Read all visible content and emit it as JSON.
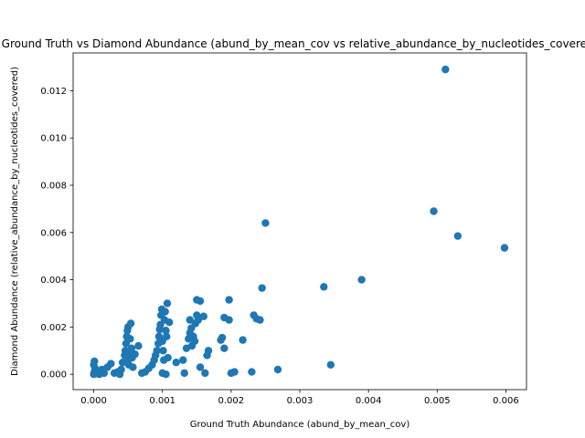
{
  "chart_data": {
    "type": "scatter",
    "title": "Ground Truth vs Diamond Abundance (abund_by_mean_cov vs relative_abundance_by_nucleotides_covered)",
    "xlabel": "Ground Truth Abundance (abund_by_mean_cov)",
    "ylabel": "Diamond Abundance (relative_abundance_by_nucleotides_covered)",
    "xlim": [
      -0.0003,
      0.0063
    ],
    "ylim": [
      -0.00065,
      0.0136
    ],
    "xticks": [
      0.0,
      0.001,
      0.002,
      0.003,
      0.004,
      0.005,
      0.006
    ],
    "xtick_labels": [
      "0.000",
      "0.001",
      "0.002",
      "0.003",
      "0.004",
      "0.005",
      "0.006"
    ],
    "yticks": [
      0.0,
      0.002,
      0.004,
      0.006,
      0.008,
      0.01,
      0.012
    ],
    "ytick_labels": [
      "0.000",
      "0.002",
      "0.004",
      "0.006",
      "0.008",
      "0.010",
      "0.012"
    ],
    "grid": false,
    "marker_color": "#1f77b4",
    "points": [
      [
        0.0,
        0.0
      ],
      [
        1e-05,
        0.0001
      ],
      [
        2e-05,
        0.00025
      ],
      [
        0.0,
        0.0004
      ],
      [
        1e-05,
        0.00055
      ],
      [
        3e-05,
        5e-05
      ],
      [
        5e-05,
        0.00015
      ],
      [
        8e-05,
        0.0
      ],
      [
        0.0001,
        8e-05
      ],
      [
        0.00012,
        0.0002
      ],
      [
        0.00015,
        5e-05
      ],
      [
        0.0002,
        0.0003
      ],
      [
        0.00025,
        0.00045
      ],
      [
        0.0003,
        5e-05
      ],
      [
        0.00035,
        0.0001
      ],
      [
        0.00038,
        0.0
      ],
      [
        0.0004,
        0.0002
      ],
      [
        0.00042,
        0.0005
      ],
      [
        0.00045,
        0.0008
      ],
      [
        0.00046,
        0.001
      ],
      [
        0.00047,
        0.0013
      ],
      [
        0.00048,
        0.0016
      ],
      [
        0.00049,
        0.00185
      ],
      [
        0.0005,
        0.002
      ],
      [
        0.0005,
        0.0006
      ],
      [
        0.00051,
        0.0004
      ],
      [
        0.00052,
        0.0009
      ],
      [
        0.00053,
        0.0015
      ],
      [
        0.00054,
        0.00215
      ],
      [
        0.00055,
        0.0011
      ],
      [
        0.00056,
        0.0007
      ],
      [
        0.00057,
        0.0003
      ],
      [
        0.0006,
        0.00085
      ],
      [
        0.00065,
        0.0012
      ],
      [
        0.0007,
        5e-05
      ],
      [
        0.00075,
        0.0001
      ],
      [
        0.0008,
        0.00025
      ],
      [
        0.00085,
        0.0004
      ],
      [
        0.00088,
        0.0006
      ],
      [
        0.0009,
        0.0008
      ],
      [
        0.00092,
        0.001
      ],
      [
        0.00094,
        0.0013
      ],
      [
        0.00095,
        0.0016
      ],
      [
        0.00096,
        0.0019
      ],
      [
        0.00097,
        0.0021
      ],
      [
        0.00098,
        0.0025
      ],
      [
        0.00099,
        0.00275
      ],
      [
        0.001,
        0.0014
      ],
      [
        0.00101,
        0.001
      ],
      [
        0.00102,
        0.0006
      ],
      [
        0.00103,
        0.0023
      ],
      [
        0.00104,
        0.00265
      ],
      [
        0.00105,
        0.00185
      ],
      [
        0.00106,
        0.0016
      ],
      [
        0.00107,
        0.003
      ],
      [
        0.00108,
        0.0007
      ],
      [
        0.001,
        5e-05
      ],
      [
        0.00105,
        0.0
      ],
      [
        0.0011,
        0.0022
      ],
      [
        0.0012,
        0.0005
      ],
      [
        0.0013,
        0.0006
      ],
      [
        0.00132,
        5e-05
      ],
      [
        0.00135,
        0.0011
      ],
      [
        0.00138,
        0.0015
      ],
      [
        0.0014,
        0.00175
      ],
      [
        0.0014,
        0.0023
      ],
      [
        0.00142,
        0.00195
      ],
      [
        0.00143,
        0.0012
      ],
      [
        0.00145,
        0.0016
      ],
      [
        0.00147,
        0.0014
      ],
      [
        0.00148,
        0.00215
      ],
      [
        0.0015,
        0.0025
      ],
      [
        0.0015,
        0.00315
      ],
      [
        0.00152,
        0.0023
      ],
      [
        0.00155,
        0.0031
      ],
      [
        0.00155,
        0.0003
      ],
      [
        0.0016,
        0.00245
      ],
      [
        0.00162,
        5e-05
      ],
      [
        0.00165,
        0.0008
      ],
      [
        0.00167,
        0.001
      ],
      [
        0.00185,
        0.00145
      ],
      [
        0.00187,
        0.00155
      ],
      [
        0.0019,
        0.0011
      ],
      [
        0.0019,
        0.0024
      ],
      [
        0.00197,
        0.0023
      ],
      [
        0.00197,
        0.00315
      ],
      [
        0.002,
        5e-05
      ],
      [
        0.00205,
        0.0001
      ],
      [
        0.00217,
        0.00145
      ],
      [
        0.0023,
        0.0001
      ],
      [
        0.00233,
        0.0025
      ],
      [
        0.00237,
        0.00235
      ],
      [
        0.00242,
        0.0023
      ],
      [
        0.00245,
        0.00365
      ],
      [
        0.0025,
        0.0064
      ],
      [
        0.00268,
        0.0002
      ],
      [
        0.00335,
        0.0037
      ],
      [
        0.00345,
        0.0004
      ],
      [
        0.0039,
        0.004
      ],
      [
        0.00495,
        0.0069
      ],
      [
        0.00512,
        0.0129
      ],
      [
        0.0053,
        0.00585
      ],
      [
        0.00598,
        0.00535
      ]
    ]
  }
}
